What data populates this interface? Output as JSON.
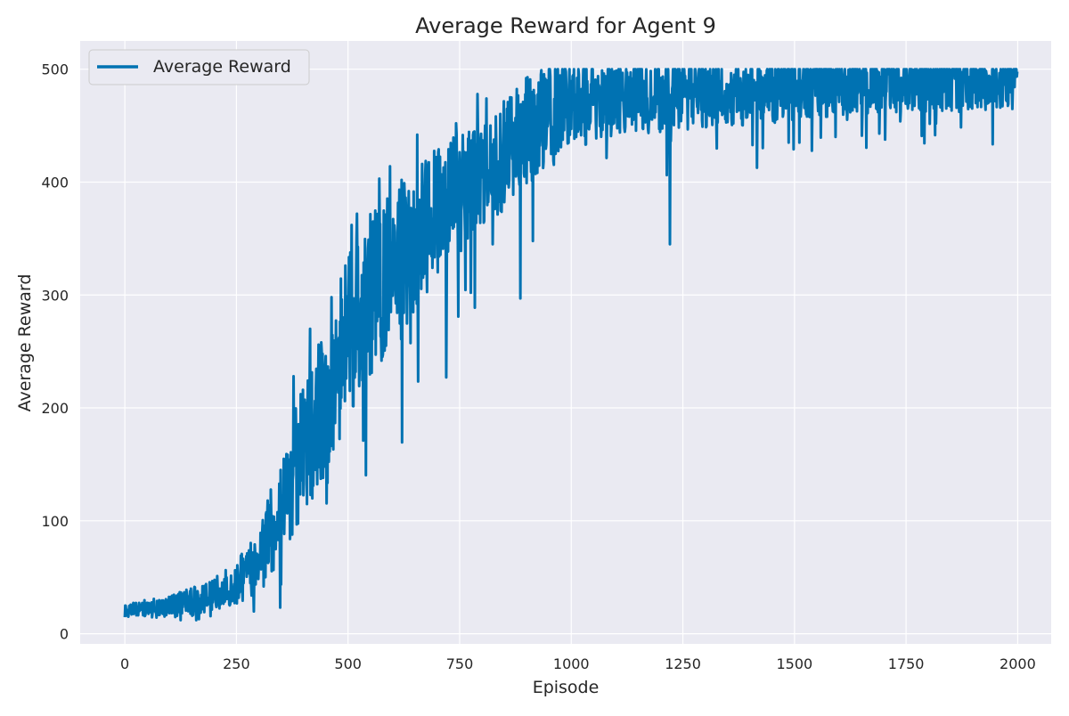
{
  "chart_data": {
    "type": "line",
    "title": "Average Reward for Agent 9",
    "xlabel": "Episode",
    "ylabel": "Average Reward",
    "xlim": [
      -100,
      2075
    ],
    "ylim": [
      -9,
      525
    ],
    "xticks": [
      0,
      250,
      500,
      750,
      1000,
      1250,
      1500,
      1750,
      2000
    ],
    "xtick_labels": [
      "0",
      "250",
      "500",
      "750",
      "1000",
      "1250",
      "1500",
      "1750",
      "2000"
    ],
    "yticks": [
      0,
      100,
      200,
      300,
      400,
      500
    ],
    "ytick_labels": [
      "0",
      "100",
      "200",
      "300",
      "400",
      "500"
    ],
    "grid": true,
    "legend_position": "top-left",
    "style": {
      "background": "#eaeaf2",
      "grid_color": "#ffffff",
      "line_color": "#0072b2"
    },
    "series": [
      {
        "name": "Average Reward",
        "trend": {
          "x": [
            0,
            50,
            100,
            150,
            200,
            250,
            300,
            350,
            400,
            450,
            500,
            550,
            600,
            650,
            700,
            750,
            800,
            850,
            900,
            950,
            1000,
            1100,
            1200,
            1300,
            1400,
            1500,
            1600,
            1700,
            1800,
            1900,
            1999
          ],
          "y": [
            21,
            22,
            24,
            28,
            35,
            45,
            65,
            110,
            165,
            205,
            265,
            300,
            320,
            345,
            375,
            395,
            405,
            425,
            445,
            460,
            470,
            475,
            478,
            480,
            482,
            484,
            486,
            487,
            488,
            489,
            490
          ],
          "noise": [
            4,
            5,
            6,
            8,
            9,
            12,
            18,
            30,
            38,
            42,
            45,
            45,
            45,
            40,
            35,
            32,
            30,
            30,
            30,
            28,
            25,
            22,
            22,
            20,
            20,
            18,
            17,
            16,
            16,
            16,
            16
          ]
        },
        "spikes": [
          {
            "x": 378,
            "y": 228
          },
          {
            "x": 415,
            "y": 270
          },
          {
            "x": 463,
            "y": 298
          },
          {
            "x": 508,
            "y": 362
          },
          {
            "x": 520,
            "y": 372
          },
          {
            "x": 534,
            "y": 171
          },
          {
            "x": 546,
            "y": 349
          },
          {
            "x": 570,
            "y": 403
          },
          {
            "x": 594,
            "y": 414
          },
          {
            "x": 620,
            "y": 402
          },
          {
            "x": 655,
            "y": 442
          },
          {
            "x": 720,
            "y": 227
          },
          {
            "x": 742,
            "y": 452
          },
          {
            "x": 775,
            "y": 302
          },
          {
            "x": 790,
            "y": 478
          },
          {
            "x": 810,
            "y": 474
          },
          {
            "x": 886,
            "y": 297
          },
          {
            "x": 1221,
            "y": 345
          }
        ]
      }
    ]
  }
}
